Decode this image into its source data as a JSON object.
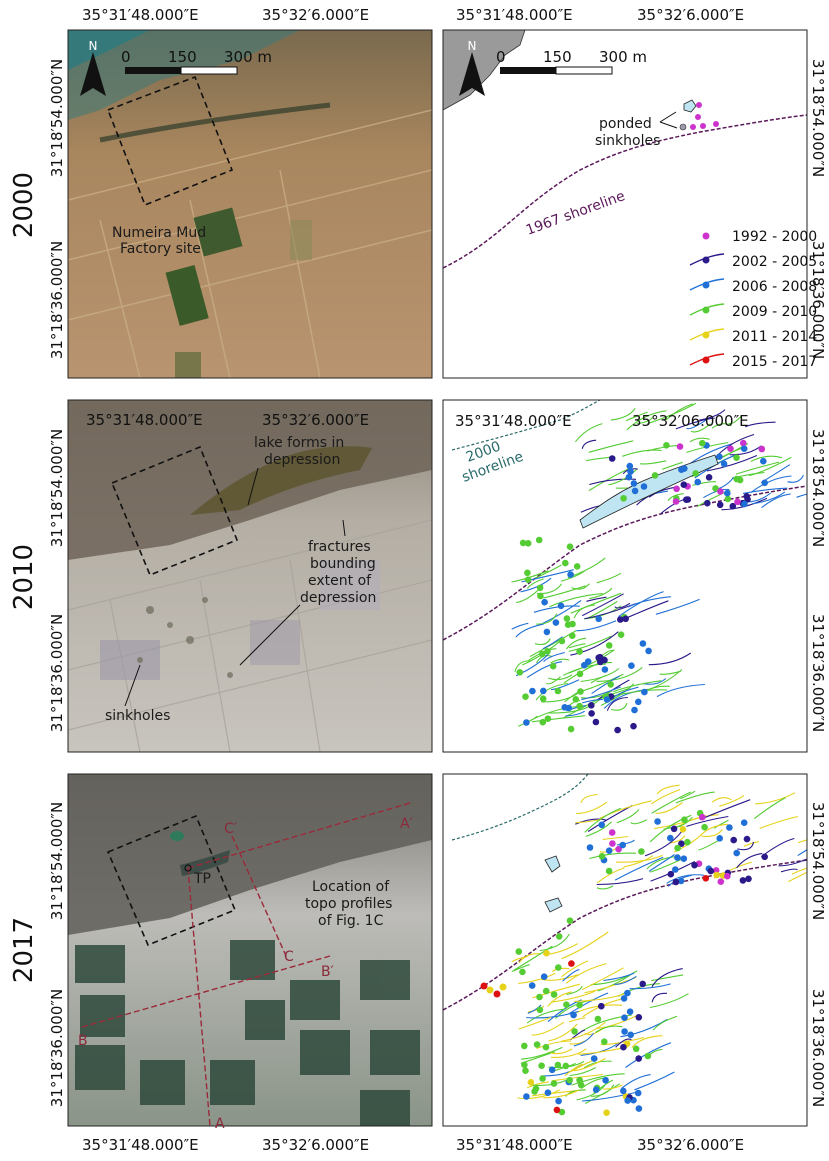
{
  "rows": [
    {
      "year": "2000"
    },
    {
      "year": "2010"
    },
    {
      "year": "2017"
    }
  ],
  "coords": {
    "lon_left": "35°31′48.000″E",
    "lon_right": "35°32′6.000″E",
    "lon_right_alt": "35°32′06.000″E",
    "lat_top": "31°18′54.000″N",
    "lat_bottom": "31°18′36.000″N"
  },
  "scale": {
    "n": "N",
    "t0": "0",
    "t1": "150",
    "t2": "300 m"
  },
  "annotations": {
    "factory_line1": "Numeira Mud",
    "factory_line2": "Factory site",
    "ponded_line1": "ponded",
    "ponded_line2": "sinkholes",
    "shoreline1967": "1967 shoreline",
    "shoreline2000_line1": "2000",
    "shoreline2000_line2": "shoreline",
    "lake_line1": "lake forms in",
    "lake_line2": "depression",
    "fract_line1": "fractures",
    "fract_line2": "bounding",
    "fract_line3": "extent of",
    "fract_line4": "depression",
    "sinkholes": "sinkholes",
    "topo_line1": "Location of",
    "topo_line2": "topo profiles",
    "topo_line3": "of Fig. 1C",
    "tp": "TP",
    "A": "A",
    "A_prime": "A′",
    "B": "B",
    "B_prime": "B′",
    "C": "C",
    "C_prime": "C′"
  },
  "legend": [
    {
      "label": "1992 - 2000",
      "color": "#cc33cc"
    },
    {
      "label": "2002 - 2005",
      "color": "#2a1a8a"
    },
    {
      "label": "2006 - 2008",
      "color": "#1f6fd6"
    },
    {
      "label": "2009 - 2010",
      "color": "#55cc33"
    },
    {
      "label": "2011 - 2014",
      "color": "#e6d21a"
    },
    {
      "label": "2015 - 2017",
      "color": "#dd1111"
    }
  ],
  "colors": {
    "shoreline_1967": "#5a1a5a",
    "shoreline_2000": "#2a6a6a",
    "water": "#bfe4f2",
    "land_gray": "#9a9a9a",
    "profile_line": "#9a2a3a"
  }
}
